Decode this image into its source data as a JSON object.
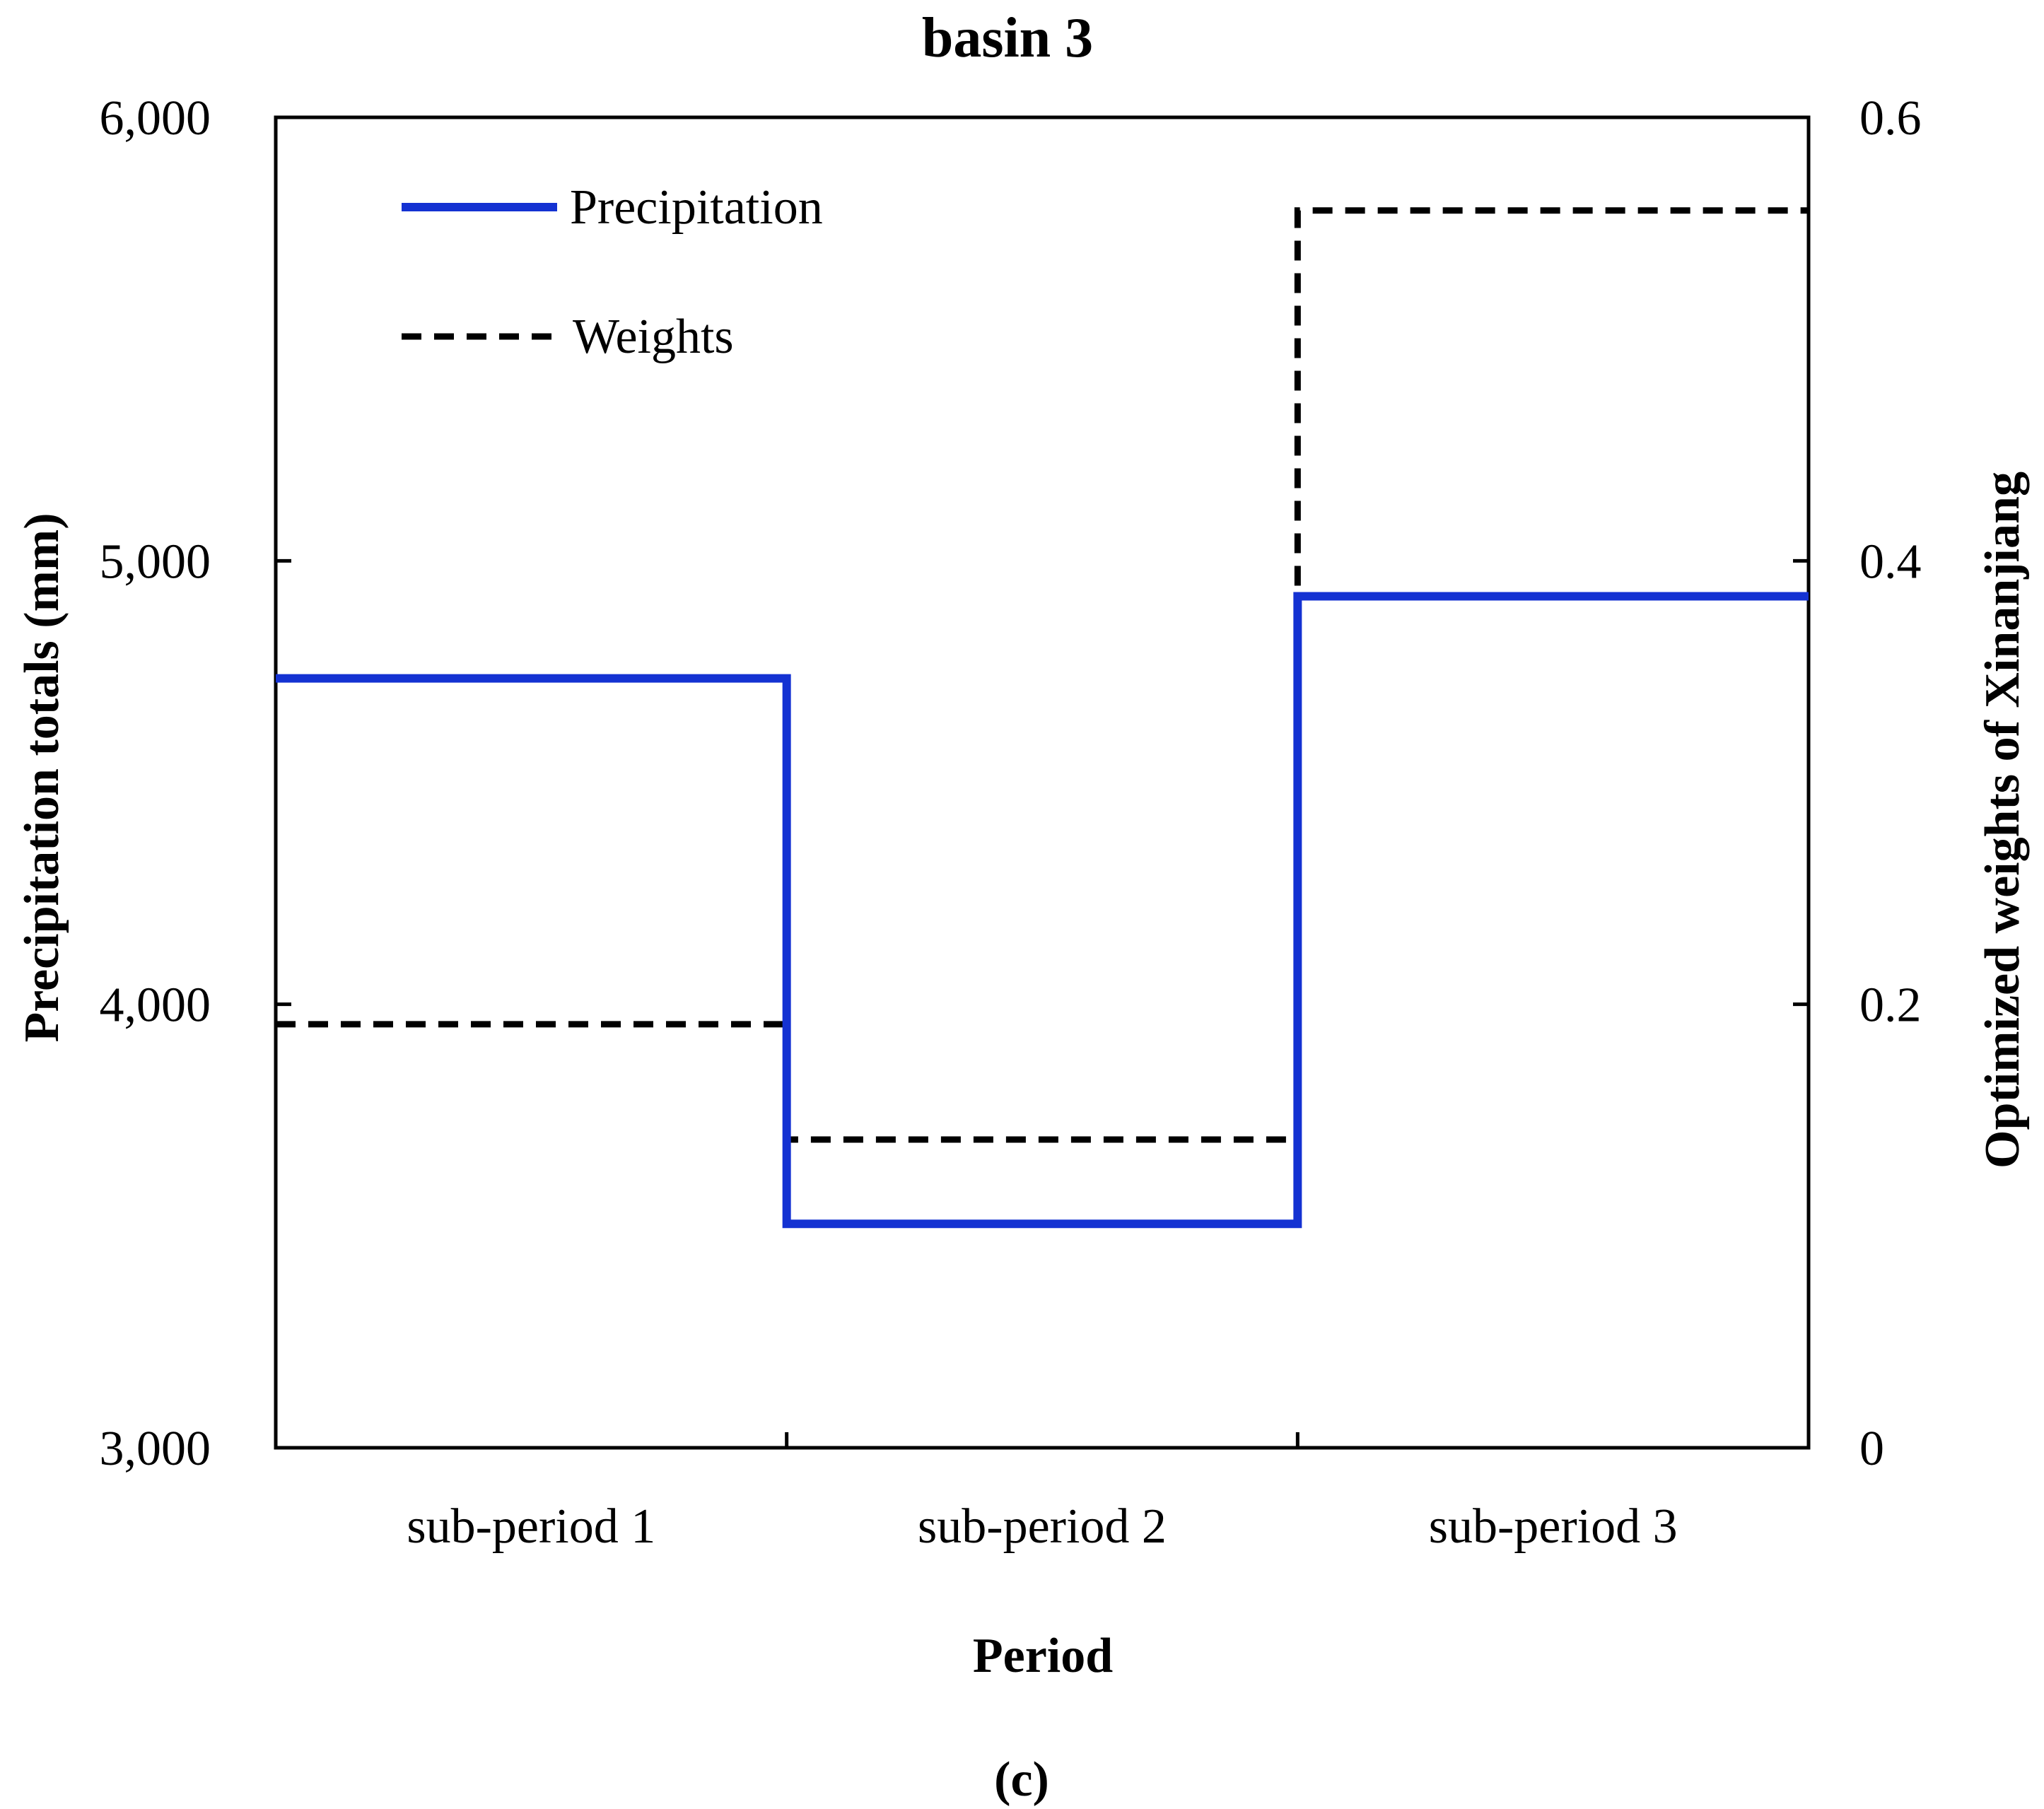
{
  "chart_data": {
    "type": "line",
    "step": true,
    "title": "basin 3",
    "xlabel": "Period",
    "ylabel_left": "Precipitation totals (mm)",
    "ylabel_right": "Optimized weights of Xinanjiang",
    "caption": "(c)",
    "categories": [
      "sub-period 1",
      "sub-period 2",
      "sub-period 3"
    ],
    "ylim_left": [
      3000,
      6000
    ],
    "ylim_right": [
      0,
      0.6
    ],
    "yticks_left": [
      3000,
      4000,
      5000,
      6000
    ],
    "ytick_labels_left": [
      "3,000",
      "4,000",
      "5,000",
      "6,000"
    ],
    "yticks_right": [
      0,
      0.2,
      0.4,
      0.6
    ],
    "ytick_labels_right": [
      "0",
      "0.2",
      "0.4",
      "0.6"
    ],
    "grid": false,
    "legend_position": "top-left",
    "series": [
      {
        "name": "Precipitation",
        "axis": "left",
        "values": [
          4735,
          3505,
          4920
        ],
        "color": "#1432d2",
        "style": "solid"
      },
      {
        "name": "Weights",
        "axis": "right",
        "values": [
          0.191,
          0.139,
          0.558
        ],
        "color": "#000000",
        "style": "dashed"
      }
    ]
  }
}
